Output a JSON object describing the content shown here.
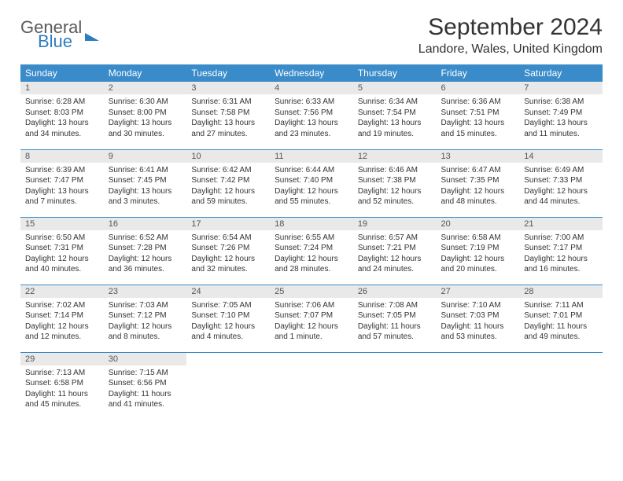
{
  "logo": {
    "line1": "General",
    "line2": "Blue"
  },
  "title": "September 2024",
  "location": "Landore, Wales, United Kingdom",
  "colors": {
    "header_bg": "#3a8bc9",
    "header_text": "#ffffff",
    "daynum_bg": "#e9e9e9",
    "border": "#3a8bc9",
    "logo_blue": "#2e7cc0",
    "body_text": "#333333"
  },
  "weekday_labels": [
    "Sunday",
    "Monday",
    "Tuesday",
    "Wednesday",
    "Thursday",
    "Friday",
    "Saturday"
  ],
  "weeks": [
    [
      {
        "day": "1",
        "sunrise": "Sunrise: 6:28 AM",
        "sunset": "Sunset: 8:03 PM",
        "daylight1": "Daylight: 13 hours",
        "daylight2": "and 34 minutes."
      },
      {
        "day": "2",
        "sunrise": "Sunrise: 6:30 AM",
        "sunset": "Sunset: 8:00 PM",
        "daylight1": "Daylight: 13 hours",
        "daylight2": "and 30 minutes."
      },
      {
        "day": "3",
        "sunrise": "Sunrise: 6:31 AM",
        "sunset": "Sunset: 7:58 PM",
        "daylight1": "Daylight: 13 hours",
        "daylight2": "and 27 minutes."
      },
      {
        "day": "4",
        "sunrise": "Sunrise: 6:33 AM",
        "sunset": "Sunset: 7:56 PM",
        "daylight1": "Daylight: 13 hours",
        "daylight2": "and 23 minutes."
      },
      {
        "day": "5",
        "sunrise": "Sunrise: 6:34 AM",
        "sunset": "Sunset: 7:54 PM",
        "daylight1": "Daylight: 13 hours",
        "daylight2": "and 19 minutes."
      },
      {
        "day": "6",
        "sunrise": "Sunrise: 6:36 AM",
        "sunset": "Sunset: 7:51 PM",
        "daylight1": "Daylight: 13 hours",
        "daylight2": "and 15 minutes."
      },
      {
        "day": "7",
        "sunrise": "Sunrise: 6:38 AM",
        "sunset": "Sunset: 7:49 PM",
        "daylight1": "Daylight: 13 hours",
        "daylight2": "and 11 minutes."
      }
    ],
    [
      {
        "day": "8",
        "sunrise": "Sunrise: 6:39 AM",
        "sunset": "Sunset: 7:47 PM",
        "daylight1": "Daylight: 13 hours",
        "daylight2": "and 7 minutes."
      },
      {
        "day": "9",
        "sunrise": "Sunrise: 6:41 AM",
        "sunset": "Sunset: 7:45 PM",
        "daylight1": "Daylight: 13 hours",
        "daylight2": "and 3 minutes."
      },
      {
        "day": "10",
        "sunrise": "Sunrise: 6:42 AM",
        "sunset": "Sunset: 7:42 PM",
        "daylight1": "Daylight: 12 hours",
        "daylight2": "and 59 minutes."
      },
      {
        "day": "11",
        "sunrise": "Sunrise: 6:44 AM",
        "sunset": "Sunset: 7:40 PM",
        "daylight1": "Daylight: 12 hours",
        "daylight2": "and 55 minutes."
      },
      {
        "day": "12",
        "sunrise": "Sunrise: 6:46 AM",
        "sunset": "Sunset: 7:38 PM",
        "daylight1": "Daylight: 12 hours",
        "daylight2": "and 52 minutes."
      },
      {
        "day": "13",
        "sunrise": "Sunrise: 6:47 AM",
        "sunset": "Sunset: 7:35 PM",
        "daylight1": "Daylight: 12 hours",
        "daylight2": "and 48 minutes."
      },
      {
        "day": "14",
        "sunrise": "Sunrise: 6:49 AM",
        "sunset": "Sunset: 7:33 PM",
        "daylight1": "Daylight: 12 hours",
        "daylight2": "and 44 minutes."
      }
    ],
    [
      {
        "day": "15",
        "sunrise": "Sunrise: 6:50 AM",
        "sunset": "Sunset: 7:31 PM",
        "daylight1": "Daylight: 12 hours",
        "daylight2": "and 40 minutes."
      },
      {
        "day": "16",
        "sunrise": "Sunrise: 6:52 AM",
        "sunset": "Sunset: 7:28 PM",
        "daylight1": "Daylight: 12 hours",
        "daylight2": "and 36 minutes."
      },
      {
        "day": "17",
        "sunrise": "Sunrise: 6:54 AM",
        "sunset": "Sunset: 7:26 PM",
        "daylight1": "Daylight: 12 hours",
        "daylight2": "and 32 minutes."
      },
      {
        "day": "18",
        "sunrise": "Sunrise: 6:55 AM",
        "sunset": "Sunset: 7:24 PM",
        "daylight1": "Daylight: 12 hours",
        "daylight2": "and 28 minutes."
      },
      {
        "day": "19",
        "sunrise": "Sunrise: 6:57 AM",
        "sunset": "Sunset: 7:21 PM",
        "daylight1": "Daylight: 12 hours",
        "daylight2": "and 24 minutes."
      },
      {
        "day": "20",
        "sunrise": "Sunrise: 6:58 AM",
        "sunset": "Sunset: 7:19 PM",
        "daylight1": "Daylight: 12 hours",
        "daylight2": "and 20 minutes."
      },
      {
        "day": "21",
        "sunrise": "Sunrise: 7:00 AM",
        "sunset": "Sunset: 7:17 PM",
        "daylight1": "Daylight: 12 hours",
        "daylight2": "and 16 minutes."
      }
    ],
    [
      {
        "day": "22",
        "sunrise": "Sunrise: 7:02 AM",
        "sunset": "Sunset: 7:14 PM",
        "daylight1": "Daylight: 12 hours",
        "daylight2": "and 12 minutes."
      },
      {
        "day": "23",
        "sunrise": "Sunrise: 7:03 AM",
        "sunset": "Sunset: 7:12 PM",
        "daylight1": "Daylight: 12 hours",
        "daylight2": "and 8 minutes."
      },
      {
        "day": "24",
        "sunrise": "Sunrise: 7:05 AM",
        "sunset": "Sunset: 7:10 PM",
        "daylight1": "Daylight: 12 hours",
        "daylight2": "and 4 minutes."
      },
      {
        "day": "25",
        "sunrise": "Sunrise: 7:06 AM",
        "sunset": "Sunset: 7:07 PM",
        "daylight1": "Daylight: 12 hours",
        "daylight2": "and 1 minute."
      },
      {
        "day": "26",
        "sunrise": "Sunrise: 7:08 AM",
        "sunset": "Sunset: 7:05 PM",
        "daylight1": "Daylight: 11 hours",
        "daylight2": "and 57 minutes."
      },
      {
        "day": "27",
        "sunrise": "Sunrise: 7:10 AM",
        "sunset": "Sunset: 7:03 PM",
        "daylight1": "Daylight: 11 hours",
        "daylight2": "and 53 minutes."
      },
      {
        "day": "28",
        "sunrise": "Sunrise: 7:11 AM",
        "sunset": "Sunset: 7:01 PM",
        "daylight1": "Daylight: 11 hours",
        "daylight2": "and 49 minutes."
      }
    ],
    [
      {
        "day": "29",
        "sunrise": "Sunrise: 7:13 AM",
        "sunset": "Sunset: 6:58 PM",
        "daylight1": "Daylight: 11 hours",
        "daylight2": "and 45 minutes."
      },
      {
        "day": "30",
        "sunrise": "Sunrise: 7:15 AM",
        "sunset": "Sunset: 6:56 PM",
        "daylight1": "Daylight: 11 hours",
        "daylight2": "and 41 minutes."
      },
      {
        "empty": true
      },
      {
        "empty": true
      },
      {
        "empty": true
      },
      {
        "empty": true
      },
      {
        "empty": true
      }
    ]
  ]
}
